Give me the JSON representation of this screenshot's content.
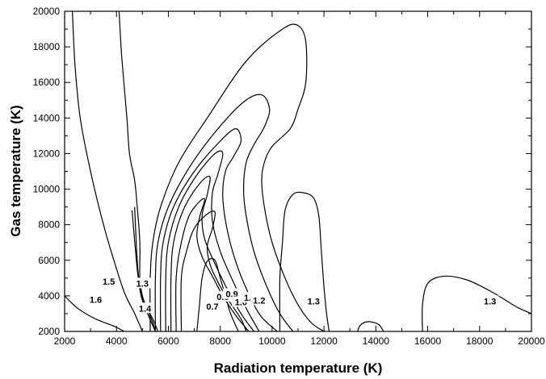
{
  "chart_data": {
    "type": "contour",
    "title": "",
    "xlabel": "Radiation temperature (K)",
    "ylabel": "Gas temperature (K)",
    "xlim": [
      2000,
      20000
    ],
    "ylim": [
      2000,
      20000
    ],
    "xticks": [
      "2000",
      "4000",
      "6000",
      "8000",
      "10000",
      "12000",
      "14000",
      "16000",
      "18000",
      "20000"
    ],
    "yticks": [
      "2000",
      "4000",
      "6000",
      "8000",
      "10000",
      "12000",
      "14000",
      "16000",
      "18000",
      "20000"
    ],
    "grid": false,
    "contours": [
      {
        "level": "1.6",
        "points": [
          [
            2000,
            4000
          ],
          [
            2500,
            3300
          ],
          [
            3200,
            2700
          ],
          [
            3900,
            2300
          ],
          [
            4300,
            2000
          ]
        ],
        "label_at": [
          3200,
          3800
        ]
      },
      {
        "level": "1.5",
        "points": [
          [
            2300,
            20000
          ],
          [
            2400,
            17000
          ],
          [
            2600,
            14000
          ],
          [
            3000,
            11000
          ],
          [
            3500,
            8000
          ],
          [
            3900,
            6000
          ],
          [
            4300,
            4200
          ],
          [
            4700,
            3000
          ],
          [
            5000,
            2000
          ]
        ],
        "label_at": [
          3700,
          4800
        ]
      },
      {
        "level": "",
        "points": [
          [
            4100,
            20000
          ],
          [
            4200,
            17500
          ],
          [
            4400,
            14000
          ],
          [
            4500,
            12000
          ],
          [
            4700,
            10500
          ],
          [
            4800,
            9000
          ],
          [
            4900,
            7000
          ],
          [
            4900,
            5000
          ],
          [
            5000,
            4000
          ],
          [
            5200,
            3200
          ],
          [
            5400,
            2500
          ],
          [
            5500,
            2000
          ]
        ]
      },
      {
        "level": "1.3",
        "points": [
          [
            4700,
            9000
          ],
          [
            4800,
            6000
          ],
          [
            4900,
            4500
          ],
          [
            5100,
            3500
          ],
          [
            5400,
            2700
          ],
          [
            5600,
            2000
          ]
        ],
        "label_at": [
          5000,
          4700
        ]
      },
      {
        "level": "1.4",
        "points": [
          [
            4600,
            8800
          ],
          [
            4800,
            5500
          ],
          [
            4950,
            4000
          ],
          [
            5200,
            3000
          ],
          [
            5500,
            2000
          ]
        ],
        "label_at": [
          5100,
          3300
        ]
      },
      {
        "level": "",
        "points": [
          [
            5300,
            2000
          ],
          [
            5300,
            5000
          ],
          [
            5400,
            7000
          ],
          [
            5700,
            9000
          ],
          [
            6400,
            11500
          ],
          [
            7500,
            14000
          ],
          [
            9000,
            17200
          ],
          [
            10400,
            19000
          ],
          [
            11000,
            19200
          ],
          [
            11300,
            18300
          ],
          [
            11300,
            16000
          ],
          [
            11000,
            14500
          ],
          [
            10700,
            13400
          ],
          [
            10000,
            12400
          ],
          [
            9700,
            11500
          ],
          [
            9600,
            10500
          ],
          [
            9700,
            9000
          ],
          [
            10000,
            7000
          ],
          [
            10500,
            5000
          ],
          [
            11000,
            3500
          ],
          [
            11500,
            2500
          ],
          [
            12000,
            2000
          ]
        ]
      },
      {
        "level": "",
        "points": [
          [
            5500,
            2000
          ],
          [
            5500,
            5000
          ],
          [
            5600,
            7000
          ],
          [
            6000,
            9000
          ],
          [
            6800,
            11200
          ],
          [
            7800,
            13200
          ],
          [
            8900,
            14900
          ],
          [
            9600,
            15300
          ],
          [
            9900,
            14500
          ],
          [
            9700,
            13500
          ],
          [
            9300,
            12500
          ],
          [
            9000,
            11500
          ],
          [
            8900,
            10000
          ],
          [
            9000,
            8500
          ],
          [
            9300,
            6500
          ],
          [
            9800,
            4500
          ],
          [
            10300,
            3000
          ],
          [
            10800,
            2000
          ]
        ]
      },
      {
        "level": "",
        "points": [
          [
            5700,
            2000
          ],
          [
            5700,
            5000
          ],
          [
            5800,
            7000
          ],
          [
            6200,
            9000
          ],
          [
            7000,
            11000
          ],
          [
            8000,
            12700
          ],
          [
            8600,
            13400
          ],
          [
            8800,
            12700
          ],
          [
            8500,
            11800
          ],
          [
            8200,
            11000
          ],
          [
            8100,
            9500
          ],
          [
            8300,
            7500
          ],
          [
            8700,
            5500
          ],
          [
            9200,
            3800
          ],
          [
            9600,
            2800
          ],
          [
            10200,
            2000
          ]
        ]
      },
      {
        "level": "",
        "points": [
          [
            5900,
            2000
          ],
          [
            5900,
            5000
          ],
          [
            6000,
            7000
          ],
          [
            6400,
            9000
          ],
          [
            7100,
            10800
          ],
          [
            7800,
            12000
          ],
          [
            8100,
            12000
          ],
          [
            7900,
            10800
          ],
          [
            7700,
            9800
          ],
          [
            7700,
            8200
          ],
          [
            8000,
            6500
          ],
          [
            8500,
            4800
          ],
          [
            9000,
            3300
          ],
          [
            9500,
            2000
          ]
        ]
      },
      {
        "level": "",
        "points": [
          [
            6100,
            2000
          ],
          [
            6100,
            5000
          ],
          [
            6200,
            7000
          ],
          [
            6600,
            8900
          ],
          [
            7200,
            10300
          ],
          [
            7600,
            10700
          ],
          [
            7500,
            9700
          ],
          [
            7300,
            8500
          ],
          [
            7400,
            7200
          ],
          [
            7800,
            5800
          ],
          [
            8300,
            4300
          ],
          [
            8800,
            3000
          ],
          [
            9300,
            2000
          ]
        ]
      },
      {
        "level": "",
        "points": [
          [
            6300,
            2000
          ],
          [
            6300,
            5000
          ],
          [
            6500,
            7000
          ],
          [
            6800,
            8500
          ],
          [
            7200,
            9300
          ],
          [
            7400,
            9400
          ],
          [
            7200,
            8400
          ],
          [
            7100,
            7300
          ],
          [
            7300,
            6200
          ],
          [
            7700,
            5100
          ],
          [
            8100,
            4000
          ],
          [
            8600,
            2900
          ],
          [
            9100,
            2000
          ]
        ]
      },
      {
        "level": "",
        "points": [
          [
            6500,
            2000
          ],
          [
            6500,
            5000
          ],
          [
            6700,
            6500
          ],
          [
            7000,
            7800
          ],
          [
            7500,
            8600
          ],
          [
            7800,
            8700
          ],
          [
            7700,
            7800
          ],
          [
            7500,
            6800
          ],
          [
            7600,
            5800
          ],
          [
            7900,
            4800
          ],
          [
            8300,
            3800
          ],
          [
            8800,
            2700
          ],
          [
            9000,
            2000
          ]
        ]
      },
      {
        "level": "0.7",
        "points": [
          [
            7100,
            2000
          ],
          [
            7200,
            3500
          ],
          [
            7300,
            5000
          ],
          [
            7500,
            5950
          ],
          [
            7800,
            6000
          ],
          [
            8000,
            5000
          ],
          [
            8200,
            4000
          ],
          [
            8400,
            3000
          ],
          [
            8700,
            2000
          ]
        ],
        "label_at": [
          7700,
          3400
        ]
      },
      {
        "level": "0.8",
        "points": [],
        "label_at": [
          8100,
          3950
        ]
      },
      {
        "level": "0.9",
        "points": [],
        "label_at": [
          8450,
          4100
        ]
      },
      {
        "level": "1.0",
        "points": [],
        "label_at": [
          8800,
          3650
        ]
      },
      {
        "level": "1.1",
        "points": [],
        "label_at": [
          9150,
          3900
        ]
      },
      {
        "level": "1.2",
        "points": [],
        "label_at": [
          9500,
          3750
        ]
      },
      {
        "level": "1.3",
        "points": [
          [
            10300,
            2000
          ],
          [
            10300,
            5000
          ],
          [
            10400,
            7000
          ],
          [
            10500,
            8800
          ],
          [
            10800,
            9700
          ],
          [
            11200,
            9800
          ],
          [
            11600,
            9500
          ],
          [
            11800,
            8500
          ],
          [
            11900,
            6500
          ],
          [
            12000,
            4500
          ],
          [
            12100,
            3000
          ],
          [
            12200,
            2000
          ]
        ],
        "label_at": [
          11600,
          3700
        ]
      },
      {
        "level": "",
        "points": [
          [
            13300,
            2000
          ],
          [
            13400,
            2350
          ],
          [
            13700,
            2550
          ],
          [
            14100,
            2400
          ],
          [
            14300,
            2000
          ]
        ]
      },
      {
        "level": "1.3",
        "points": [
          [
            15800,
            2000
          ],
          [
            15800,
            3500
          ],
          [
            16000,
            4700
          ],
          [
            16600,
            5100
          ],
          [
            17500,
            4900
          ],
          [
            18500,
            4200
          ],
          [
            19400,
            3400
          ],
          [
            20000,
            3000
          ]
        ],
        "label_at": [
          18400,
          3700
        ]
      }
    ]
  }
}
